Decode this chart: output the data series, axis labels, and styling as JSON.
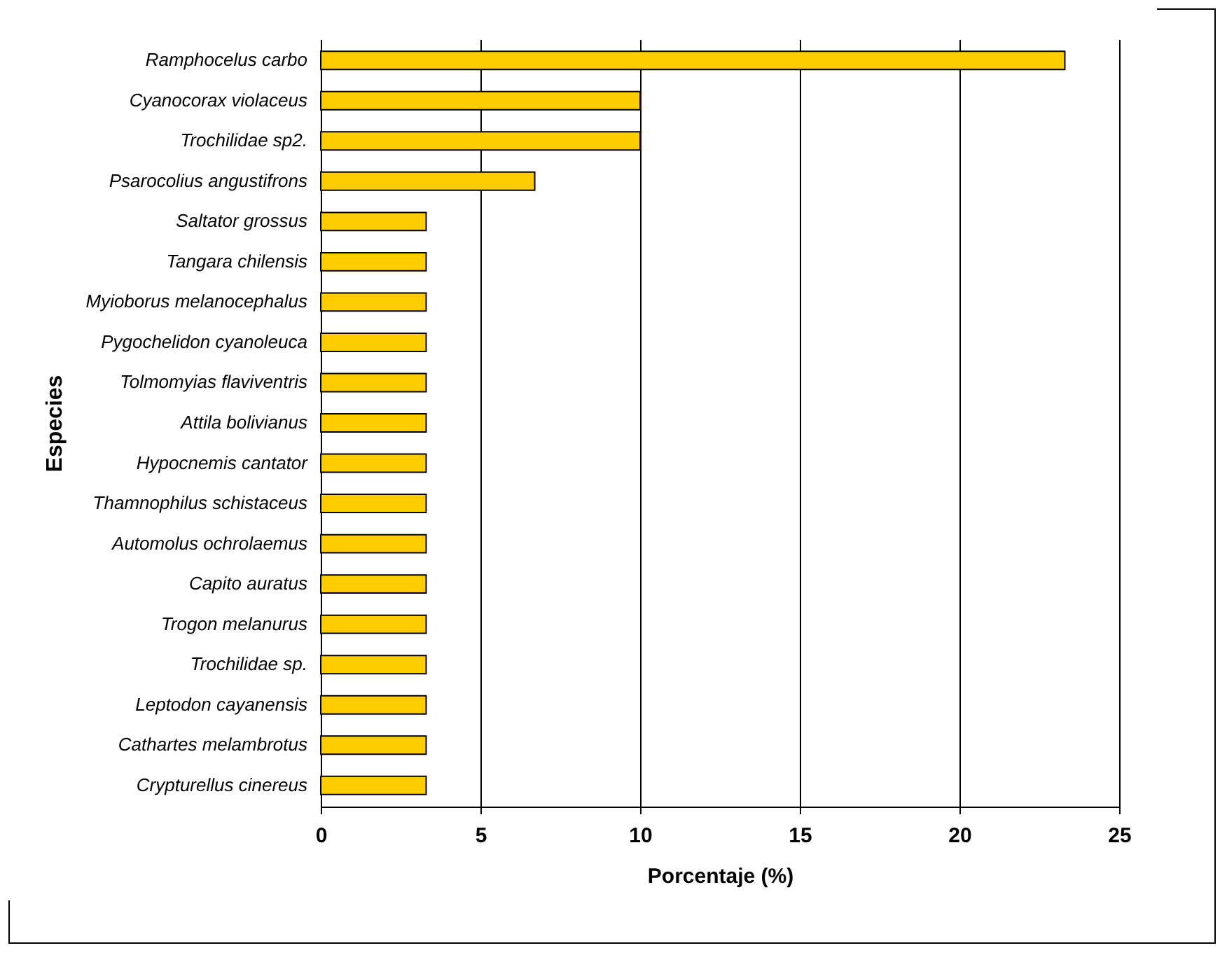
{
  "chart_data": {
    "type": "bar",
    "orientation": "horizontal",
    "xlabel": "Porcentaje (%)",
    "ylabel": "Especies",
    "categories": [
      "Ramphocelus carbo",
      "Cyanocorax violaceus",
      "Trochilidae sp2.",
      "Psarocolius angustifrons",
      "Saltator grossus",
      "Tangara chilensis",
      "Myioborus melanocephalus",
      "Pygochelidon cyanoleuca",
      "Tolmomyias flaviventris",
      "Attila bolivianus",
      "Hypocnemis cantator",
      "Thamnophilus schistaceus",
      "Automolus ochrolaemus",
      "Capito auratus",
      "Trogon melanurus",
      "Trochilidae sp.",
      "Leptodon cayanensis",
      "Cathartes melambrotus",
      "Crypturellus cinereus"
    ],
    "values": [
      23.3,
      10,
      10,
      6.7,
      3.3,
      3.3,
      3.3,
      3.3,
      3.3,
      3.3,
      3.3,
      3.3,
      3.3,
      3.3,
      3.3,
      3.3,
      3.3,
      3.3,
      3.3
    ],
    "color": "#ffcc00",
    "xlim": [
      0,
      25
    ],
    "xticks": [
      0,
      5,
      10,
      15,
      20,
      25
    ],
    "grid": "x"
  }
}
